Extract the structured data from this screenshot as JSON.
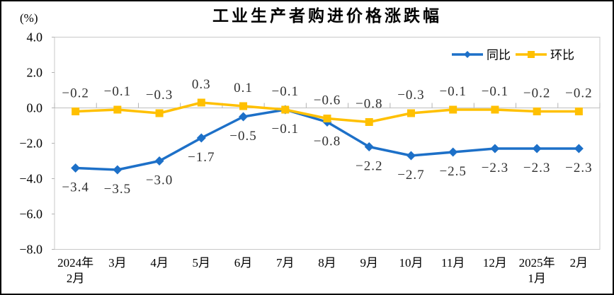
{
  "chart_data": {
    "type": "line",
    "title": "工业生产者购进价格涨跌幅",
    "unit_label": "(%)",
    "categories": [
      "2024年\n2月",
      "3月",
      "4月",
      "5月",
      "6月",
      "7月",
      "8月",
      "9月",
      "10月",
      "11月",
      "12月",
      "2025年\n1月",
      "2月"
    ],
    "series": [
      {
        "key": "yoy",
        "name": "同比",
        "color": "#1d70c8",
        "marker": "diamond",
        "label_position": "below",
        "values": [
          -3.4,
          -3.5,
          -3.0,
          -1.7,
          -0.5,
          -0.1,
          -0.8,
          -2.2,
          -2.7,
          -2.5,
          -2.3,
          -2.3,
          -2.3
        ]
      },
      {
        "key": "mom",
        "name": "环比",
        "color": "#ffc000",
        "marker": "square",
        "label_position": "above",
        "values": [
          -0.2,
          -0.1,
          -0.3,
          0.3,
          0.1,
          -0.1,
          -0.6,
          -0.8,
          -0.3,
          -0.1,
          -0.1,
          -0.2,
          -0.2
        ]
      }
    ],
    "y_axis": {
      "min": -8.0,
      "max": 4.0,
      "tick_interval": 2.0,
      "tick_labels": [
        "4.0",
        "2.0",
        "0.0",
        "-2.0",
        "-4.0",
        "-6.0",
        "-8.0"
      ]
    },
    "legend": {
      "position": "top-right",
      "entries": [
        "同比",
        "环比"
      ]
    },
    "grid": "zero-line-only",
    "colors": {
      "axis_line": "#c9c9c9",
      "zero_line": "#c9c9c9",
      "tick": "#b3b3b3",
      "data_label": "#303030",
      "axis_text": "#000000",
      "title_text": "#000000",
      "background": "#ffffff",
      "frame_border": "#000000"
    }
  }
}
